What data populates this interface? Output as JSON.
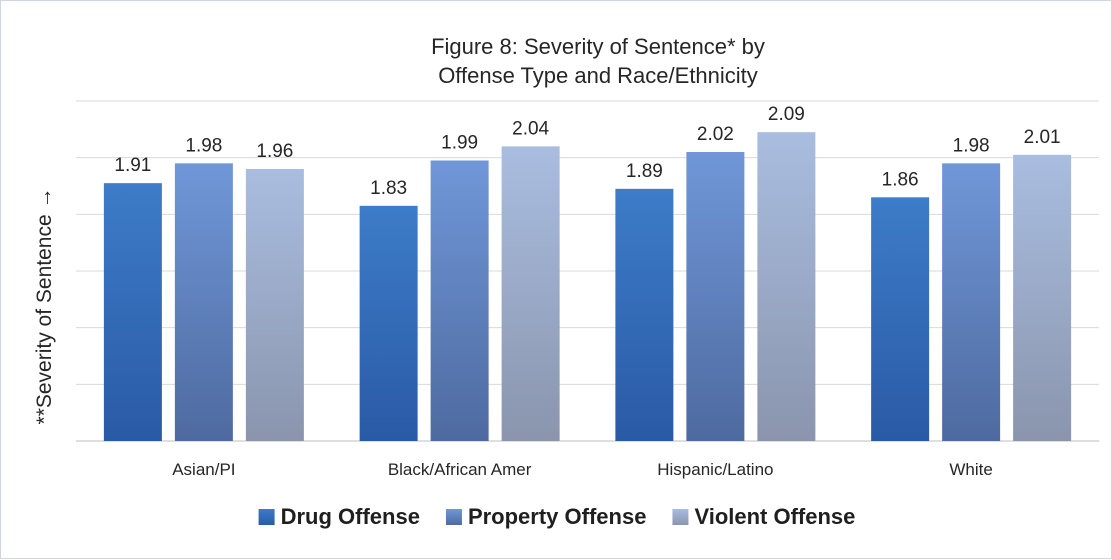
{
  "chart_data": {
    "type": "bar",
    "title_lines": [
      "Figure 8: Severity of Sentence* by",
      "Offense Type and Race/Ethnicity"
    ],
    "ylabel": "**Severity of Sentence →",
    "xlabel": "",
    "categories": [
      "Asian/PI",
      "Black/African Amer",
      "Hispanic/Latino",
      "White"
    ],
    "series": [
      {
        "name": "Drug Offense",
        "values": [
          1.91,
          1.83,
          1.89,
          1.86
        ],
        "colors": [
          "#2a5aa6",
          "#3d7cc8"
        ]
      },
      {
        "name": "Property Offense",
        "values": [
          1.98,
          1.99,
          2.02,
          1.98
        ],
        "colors": [
          "#4e6aa0",
          "#7097d8"
        ]
      },
      {
        "name": "Violent Offense",
        "values": [
          1.96,
          2.04,
          2.09,
          2.01
        ],
        "colors": [
          "#8a95ad",
          "#a9bde0"
        ]
      }
    ],
    "ylim": [
      1.0,
      2.2
    ],
    "grid_values": [
      1.0,
      1.2,
      1.4,
      1.6,
      1.8,
      2.0,
      2.2
    ],
    "ytick_labels_visible": false,
    "grid": true,
    "legend_position": "bottom"
  }
}
